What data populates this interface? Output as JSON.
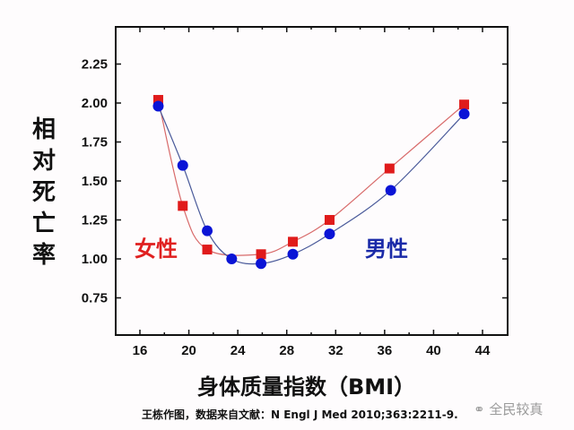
{
  "chart_data": {
    "type": "line",
    "title": "",
    "xlabel": "身体质量指数（BMI）",
    "ylabel": "相对死亡率",
    "xlim": [
      13.5,
      45.5
    ],
    "ylim": [
      0.5,
      2.5
    ],
    "xticks": [
      16,
      20,
      24,
      28,
      32,
      36,
      40,
      44
    ],
    "yticks": [
      0.75,
      1.0,
      1.25,
      1.5,
      1.75,
      2.0,
      2.25
    ],
    "ytick_labels": [
      "0.75",
      "1.00",
      "1.25",
      "1.50",
      "1.75",
      "2.00",
      "2.25"
    ],
    "grid": false,
    "legend_position": "inline labels",
    "series": [
      {
        "name": "女性",
        "marker": "square",
        "color": "#e01b1b",
        "line_color": "#d86a6a",
        "x": [
          17.5,
          19.5,
          21.5,
          25.9,
          28.5,
          31.5,
          36.4,
          42.5
        ],
        "values": [
          2.02,
          1.34,
          1.06,
          1.03,
          1.11,
          1.25,
          1.58,
          1.99
        ]
      },
      {
        "name": "男性",
        "marker": "circle",
        "color": "#0a14d6",
        "line_color": "#4a5a9a",
        "x": [
          17.5,
          19.5,
          21.5,
          23.5,
          25.9,
          28.5,
          31.5,
          36.5,
          42.5
        ],
        "values": [
          1.98,
          1.6,
          1.18,
          1.0,
          0.97,
          1.03,
          1.16,
          1.44,
          1.93
        ]
      }
    ]
  },
  "labels": {
    "ylabel_chars": [
      "相",
      "对",
      "死",
      "亡",
      "率"
    ],
    "xlabel": "身体质量指数（BMI）",
    "female": "女性",
    "male": "男性",
    "caption": "王栋作图，数据来自文献：N Engl J Med 2010;363:2211-9.",
    "watermark": "全民较真"
  }
}
